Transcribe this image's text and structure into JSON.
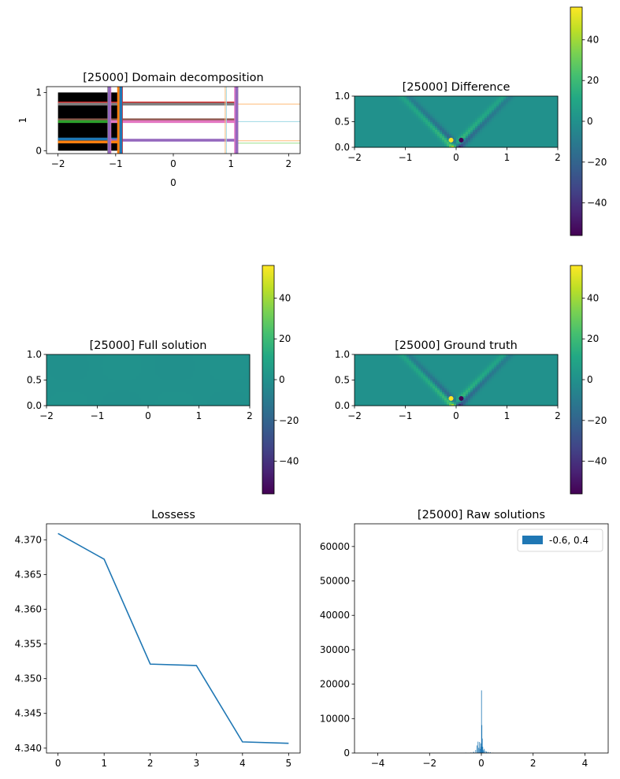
{
  "chart_data": [
    {
      "id": "domain",
      "type": "decomposition",
      "title": "[25000] Domain decomposition",
      "xlabel": "0",
      "ylabel": "1",
      "xlim": [
        -2.2,
        2.2
      ],
      "ylim": [
        -0.05,
        1.1
      ],
      "xticks": [
        -2,
        -1,
        0,
        1,
        2
      ],
      "xtick_labels": [
        "−2",
        "−1",
        "0",
        "1",
        "2"
      ],
      "yticks": [
        0,
        1
      ],
      "ytick_labels": [
        "0",
        "1"
      ],
      "black_region": {
        "x": [
          -2.0,
          -0.9
        ],
        "y": [
          0.0,
          1.0
        ]
      },
      "vertical_lines": [
        {
          "x": -1.12,
          "color": "#7f7f7f",
          "width": 3.5
        },
        {
          "x": -0.9,
          "color": "#d62728",
          "width": 3.5
        },
        {
          "x": -0.93,
          "color": "#2ca02c",
          "width": 3.5
        },
        {
          "x": -0.95,
          "color": "#ff7f0e",
          "width": 3.5
        },
        {
          "x": -0.91,
          "color": "#1f77b4",
          "width": 3.5
        },
        {
          "x": -1.1,
          "color": "#e377c2",
          "width": 3.5
        },
        {
          "x": -1.11,
          "color": "#9467bd",
          "width": 3.5
        },
        {
          "x": 0.9,
          "color": "#ffbb78",
          "width": 1
        },
        {
          "x": 0.92,
          "color": "#9edae5",
          "width": 1
        },
        {
          "x": 1.1,
          "color": "#7f7f7f",
          "width": 3.5
        },
        {
          "x": 1.1,
          "color": "#8c564b",
          "width": 3.5
        },
        {
          "x": 1.08,
          "color": "#e377c2",
          "width": 3.5
        },
        {
          "x": 1.1,
          "color": "#9467bd",
          "width": 3.5
        }
      ],
      "horizontal_lines": [
        {
          "y": 0.82,
          "color": "#d62728",
          "x0": -2.0,
          "x1": 1.1,
          "width": 3.5
        },
        {
          "y": 0.8,
          "color": "#7f7f7f",
          "x0": -2.0,
          "x1": 1.1,
          "width": 3.5
        },
        {
          "y": 0.8,
          "color": "#ffbb78",
          "x0": 1.1,
          "x1": 2.2,
          "width": 1
        },
        {
          "y": 0.53,
          "color": "#8c564b",
          "x0": -2.0,
          "x1": 1.1,
          "width": 3.5
        },
        {
          "y": 0.5,
          "color": "#2ca02c",
          "x0": -2.0,
          "x1": -0.9,
          "width": 3.5
        },
        {
          "y": 0.5,
          "color": "#e377c2",
          "x0": -1.1,
          "x1": 1.1,
          "width": 3.5
        },
        {
          "y": 0.5,
          "color": "#9edae5",
          "x0": 1.1,
          "x1": 2.2,
          "width": 1
        },
        {
          "y": 0.2,
          "color": "#1f77b4",
          "x0": -2.0,
          "x1": -0.9,
          "width": 3.5
        },
        {
          "y": 0.18,
          "color": "#9467bd",
          "x0": -1.1,
          "x1": 1.1,
          "width": 3.5
        },
        {
          "y": 0.17,
          "color": "#ffbb78",
          "x0": 1.1,
          "x1": 2.2,
          "width": 1
        },
        {
          "y": 0.15,
          "color": "#ff7f0e",
          "x0": -2.0,
          "x1": -0.9,
          "width": 3.5
        },
        {
          "y": 0.13,
          "color": "#98df8a",
          "x0": 1.1,
          "x1": 2.2,
          "width": 1
        }
      ]
    },
    {
      "id": "difference",
      "type": "heatmap",
      "title": "[25000] Difference",
      "xlim": [
        -2,
        2
      ],
      "ylim": [
        0,
        1
      ],
      "xticks": [
        -2,
        -1,
        0,
        1,
        2
      ],
      "xtick_labels": [
        "−2",
        "−1",
        "0",
        "1",
        "2"
      ],
      "yticks": [
        0.0,
        0.5,
        1.0
      ],
      "ytick_labels": [
        "0.0",
        "0.5",
        "1.0"
      ],
      "field": "wave",
      "colorbar": {
        "range": [
          -56,
          56
        ],
        "ticks": [
          40,
          20,
          0,
          -20,
          -40
        ],
        "tick_labels": [
          "40",
          "20",
          "0",
          "−20",
          "−40"
        ]
      }
    },
    {
      "id": "full",
      "type": "heatmap",
      "title": "[25000] Full solution",
      "xlim": [
        -2,
        2
      ],
      "ylim": [
        0,
        1
      ],
      "xticks": [
        -2,
        -1,
        0,
        1,
        2
      ],
      "xtick_labels": [
        "−2",
        "−1",
        "0",
        "1",
        "2"
      ],
      "yticks": [
        0.0,
        0.5,
        1.0
      ],
      "ytick_labels": [
        "0.0",
        "0.5",
        "1.0"
      ],
      "field": "flat",
      "colorbar": {
        "range": [
          -56,
          56
        ],
        "ticks": [
          40,
          20,
          0,
          -20,
          -40
        ],
        "tick_labels": [
          "40",
          "20",
          "0",
          "−20",
          "−40"
        ]
      }
    },
    {
      "id": "truth",
      "type": "heatmap",
      "title": "[25000] Ground truth",
      "xlim": [
        -2,
        2
      ],
      "ylim": [
        0,
        1
      ],
      "xticks": [
        -2,
        -1,
        0,
        1,
        2
      ],
      "xtick_labels": [
        "−2",
        "−1",
        "0",
        "1",
        "2"
      ],
      "yticks": [
        0.0,
        0.5,
        1.0
      ],
      "ytick_labels": [
        "0.0",
        "0.5",
        "1.0"
      ],
      "field": "wave",
      "colorbar": {
        "range": [
          -56,
          56
        ],
        "ticks": [
          40,
          20,
          0,
          -20,
          -40
        ],
        "tick_labels": [
          "40",
          "20",
          "0",
          "−20",
          "−40"
        ]
      }
    },
    {
      "id": "loss",
      "type": "line",
      "title": "Lossess",
      "x": [
        0,
        1,
        2,
        3,
        4,
        5
      ],
      "y": [
        4.3709,
        4.3672,
        4.3521,
        4.3519,
        4.3409,
        4.3407
      ],
      "xlim": [
        -0.25,
        5.25
      ],
      "ylim": [
        4.3393,
        4.3723
      ],
      "xticks": [
        0,
        1,
        2,
        3,
        4,
        5
      ],
      "xtick_labels": [
        "0",
        "1",
        "2",
        "3",
        "4",
        "5"
      ],
      "yticks": [
        4.34,
        4.345,
        4.35,
        4.355,
        4.36,
        4.365,
        4.37
      ],
      "ytick_labels": [
        "4.340",
        "4.345",
        "4.350",
        "4.355",
        "4.360",
        "4.365",
        "4.370"
      ],
      "color": "#1f77b4"
    },
    {
      "id": "raw",
      "type": "bar",
      "title": "[25000] Raw solutions",
      "legend": {
        "label": "-0.6, 0.4",
        "position": "top-right"
      },
      "xlim": [
        -4.9,
        4.9
      ],
      "ylim": [
        0,
        66600
      ],
      "xticks": [
        -4,
        -2,
        0,
        2,
        4
      ],
      "xtick_labels": [
        "−4",
        "−2",
        "0",
        "2",
        "4"
      ],
      "yticks": [
        0,
        10000,
        20000,
        30000,
        40000,
        50000,
        60000
      ],
      "ytick_labels": [
        "0",
        "10000",
        "20000",
        "30000",
        "40000",
        "50000",
        "60000"
      ],
      "color": "#1f77b4",
      "bins": [
        {
          "x": -0.4,
          "w": 0.03,
          "y": 150
        },
        {
          "x": -0.3,
          "w": 0.03,
          "y": 350
        },
        {
          "x": -0.22,
          "w": 0.02,
          "y": 900
        },
        {
          "x": -0.17,
          "w": 0.02,
          "y": 2200
        },
        {
          "x": -0.13,
          "w": 0.02,
          "y": 3300
        },
        {
          "x": -0.1,
          "w": 0.02,
          "y": 1500
        },
        {
          "x": -0.07,
          "w": 0.02,
          "y": 3200
        },
        {
          "x": -0.05,
          "w": 0.015,
          "y": 1200
        },
        {
          "x": -0.03,
          "w": 0.015,
          "y": 2800
        },
        {
          "x": -0.015,
          "w": 0.01,
          "y": 1800
        },
        {
          "x": 0.0,
          "w": 0.012,
          "y": 18200
        },
        {
          "x": 0.015,
          "w": 0.012,
          "y": 8100
        },
        {
          "x": 0.03,
          "w": 0.012,
          "y": 4200
        },
        {
          "x": 0.05,
          "w": 0.015,
          "y": 1800
        },
        {
          "x": 0.08,
          "w": 0.02,
          "y": 800
        },
        {
          "x": 0.11,
          "w": 0.02,
          "y": 1200
        },
        {
          "x": 0.15,
          "w": 0.02,
          "y": 600
        },
        {
          "x": 0.2,
          "w": 0.03,
          "y": 400
        },
        {
          "x": 0.26,
          "w": 0.03,
          "y": 300
        },
        {
          "x": 0.34,
          "w": 0.04,
          "y": 200
        },
        {
          "x": -0.6,
          "w": 0.05,
          "y": 80
        },
        {
          "x": 0.45,
          "w": 0.05,
          "y": 60
        }
      ]
    }
  ]
}
